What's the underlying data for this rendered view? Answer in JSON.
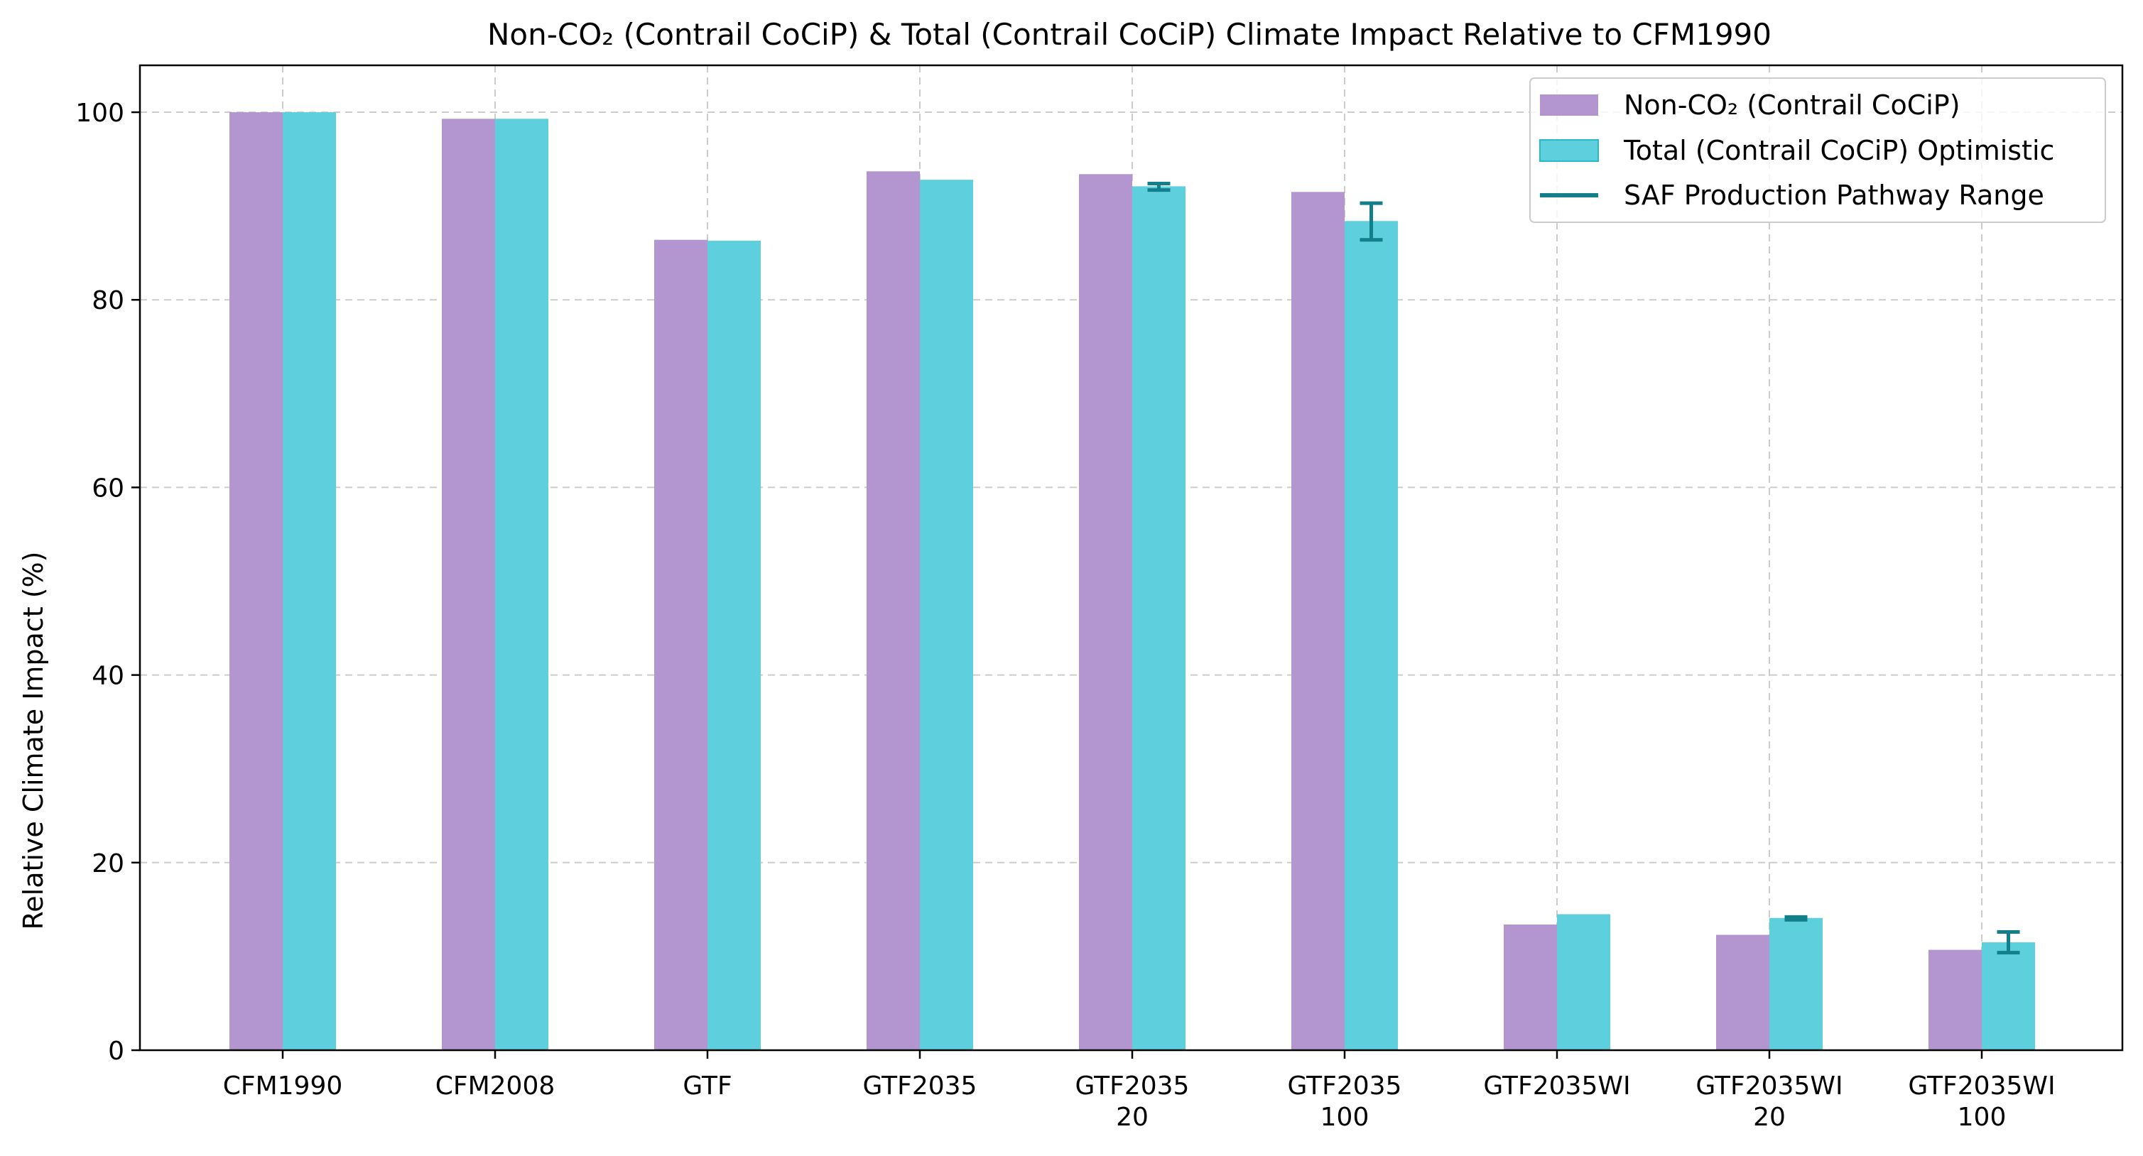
{
  "chart_data": {
    "type": "bar",
    "title": "Non-CO₂ (Contrail CoCiP) & Total (Contrail CoCiP) Climate Impact Relative to CFM1990",
    "xlabel": "",
    "ylabel": "Relative Climate Impact (%)",
    "ylim": [
      0,
      105
    ],
    "yticks": [
      0,
      20,
      40,
      60,
      80,
      100
    ],
    "grid": true,
    "legend_position": "top-right",
    "categories": [
      [
        "CFM1990"
      ],
      [
        "CFM2008"
      ],
      [
        "GTF"
      ],
      [
        "GTF2035"
      ],
      [
        "GTF2035",
        "20"
      ],
      [
        "GTF2035",
        "100"
      ],
      [
        "GTF2035WI"
      ],
      [
        "GTF2035WI",
        "20"
      ],
      [
        "GTF2035WI",
        "100"
      ]
    ],
    "series": [
      {
        "name": "Non-CO₂ (Contrail CoCiP)",
        "color": "#b396d0",
        "values": [
          100.0,
          99.3,
          86.4,
          93.7,
          93.4,
          91.5,
          13.4,
          12.3,
          10.7
        ]
      },
      {
        "name": "Total (Contrail CoCiP) Optimistic",
        "color": "#5ecfdc",
        "values": [
          100.0,
          99.3,
          86.3,
          92.8,
          92.1,
          88.4,
          14.5,
          14.1,
          11.5
        ]
      }
    ],
    "error_bars": {
      "name": "SAF Production Pathway Range",
      "color": "#137f8a",
      "series": 1,
      "ranges": [
        null,
        null,
        null,
        null,
        [
          91.7,
          92.4
        ],
        [
          86.4,
          90.3
        ],
        null,
        [
          13.9,
          14.2
        ],
        [
          10.4,
          12.6
        ]
      ]
    }
  }
}
